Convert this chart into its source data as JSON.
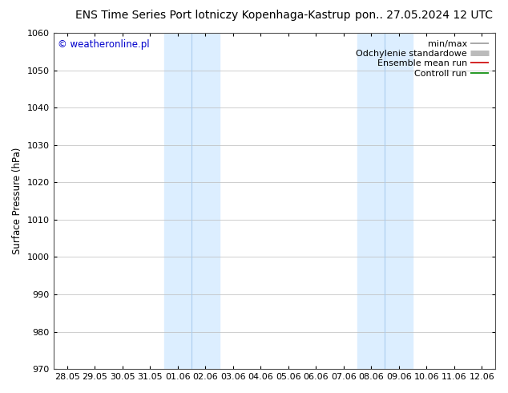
{
  "title_left": "ENS Time Series Port lotniczy Kopenhaga-Kastrup",
  "title_right": "pon.. 27.05.2024 12 UTC",
  "ylabel": "Surface Pressure (hPa)",
  "ylim": [
    970,
    1060
  ],
  "yticks": [
    970,
    980,
    990,
    1000,
    1010,
    1020,
    1030,
    1040,
    1050,
    1060
  ],
  "xlabel_dates": [
    "28.05",
    "29.05",
    "30.05",
    "31.05",
    "01.06",
    "02.06",
    "03.06",
    "04.06",
    "05.06",
    "06.06",
    "07.06",
    "08.06",
    "09.06",
    "10.06",
    "11.06",
    "12.06"
  ],
  "shade_bands": [
    {
      "x_start": "01.06",
      "x_end": "03.06"
    },
    {
      "x_start": "08.06",
      "x_end": "10.06"
    }
  ],
  "shade_dividers": [
    "02.06",
    "09.06"
  ],
  "shade_color": "#dceeff",
  "divider_color": "#aaccee",
  "background_color": "#ffffff",
  "grid_color": "#bbbbbb",
  "border_color": "#555555",
  "copyright_text": "© weatheronline.pl",
  "copyright_color": "#0000cc",
  "legend_entries": [
    {
      "label": "min/max",
      "color": "#999999",
      "lw": 1.2
    },
    {
      "label": "Odchylenie standardowe",
      "color": "#bbbbbb",
      "lw": 5
    },
    {
      "label": "Ensemble mean run",
      "color": "#cc0000",
      "lw": 1.2
    },
    {
      "label": "Controll run",
      "color": "#008800",
      "lw": 1.2
    }
  ],
  "title_fontsize": 10,
  "axis_label_fontsize": 8.5,
  "tick_fontsize": 8,
  "legend_fontsize": 8,
  "copyright_fontsize": 8.5,
  "figsize": [
    6.34,
    4.9
  ],
  "dpi": 100
}
